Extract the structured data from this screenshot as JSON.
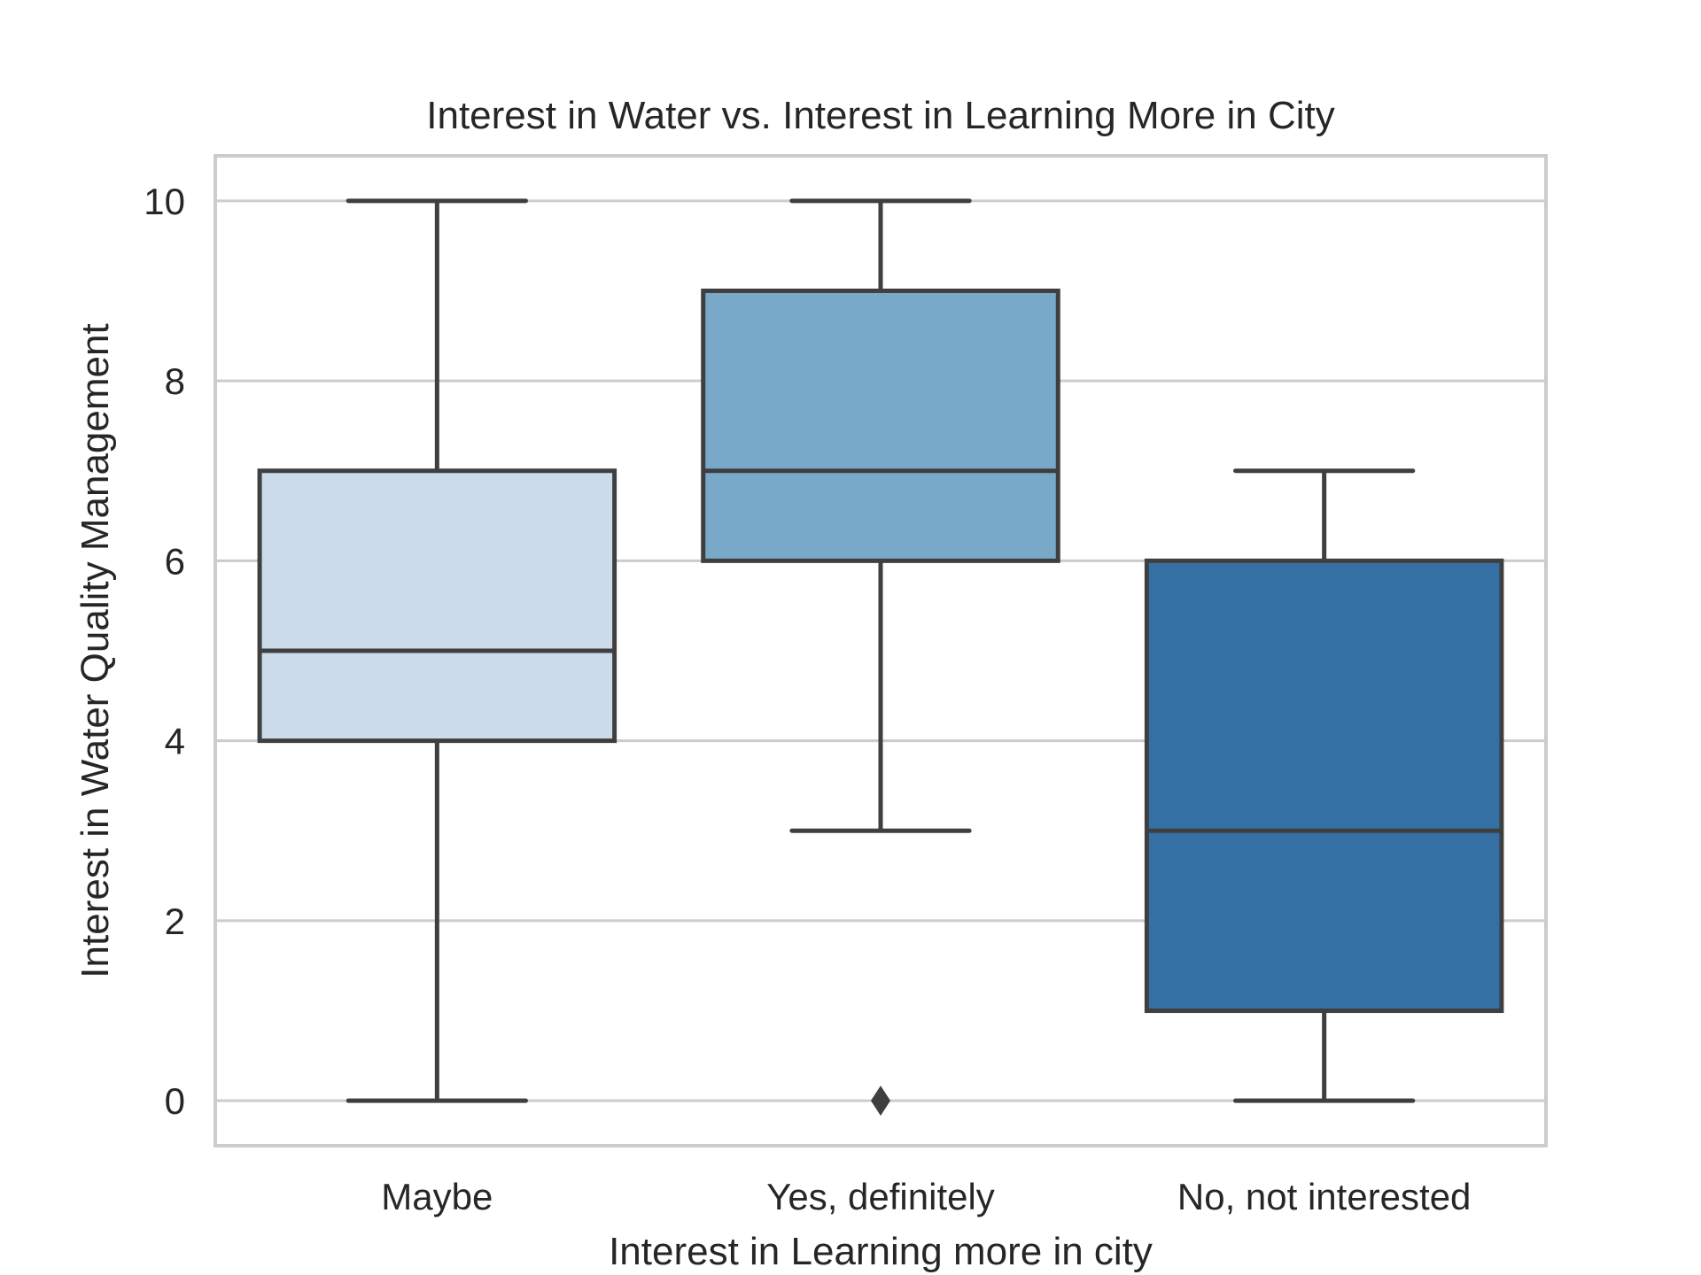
{
  "chart_data": {
    "type": "box",
    "title": "Interest in Water vs. Interest in Learning More in City",
    "xlabel": "Interest in Learning more in city",
    "ylabel": "Interest in Water Quality Management",
    "ylim": [
      -0.5,
      10.5
    ],
    "yticks": [
      0,
      2,
      4,
      6,
      8,
      10
    ],
    "grid": true,
    "categories": [
      "Maybe",
      "Yes, definitely",
      "No, not interested"
    ],
    "boxes": [
      {
        "category": "Maybe",
        "whisker_low": 0,
        "q1": 4,
        "median": 5,
        "q3": 7,
        "whisker_high": 10,
        "outliers": [],
        "color": "#cbdbea"
      },
      {
        "category": "Yes, definitely",
        "whisker_low": 3,
        "q1": 6,
        "median": 7,
        "q3": 9,
        "whisker_high": 10,
        "outliers": [
          0
        ],
        "color": "#78a9c8"
      },
      {
        "category": "No, not interested",
        "whisker_low": 0,
        "q1": 1,
        "median": 3,
        "q3": 6,
        "whisker_high": 7,
        "outliers": [],
        "color": "#3470a3"
      }
    ],
    "colors": {
      "box_edge": "#3f3f3f",
      "grid": "#cccccc",
      "frame": "#cccccc",
      "text": "#262626"
    }
  }
}
